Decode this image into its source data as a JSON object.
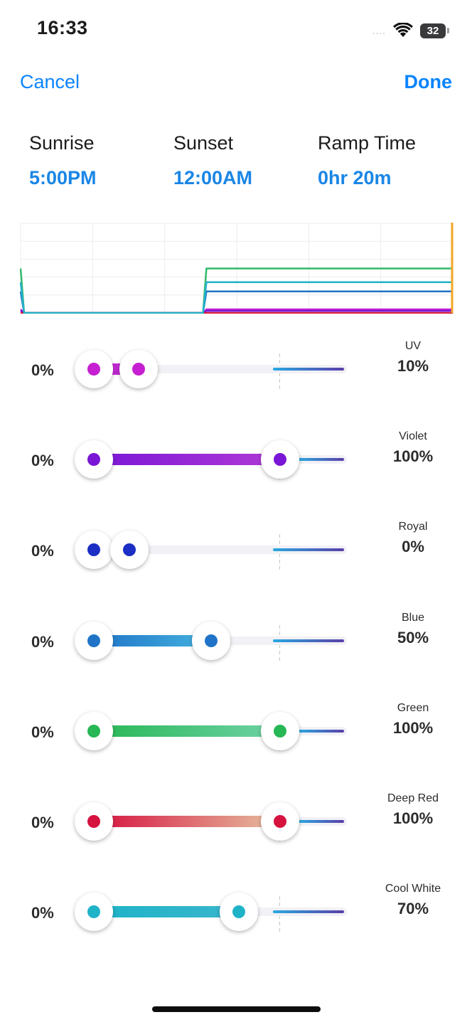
{
  "status": {
    "time": "16:33",
    "battery": "32",
    "signal_dots": "....",
    "wifi_icon": "wifi-icon"
  },
  "nav": {
    "cancel": "Cancel",
    "done": "Done"
  },
  "schedule": {
    "sunrise_label": "Sunrise",
    "sunrise_value": "5:00PM",
    "sunset_label": "Sunset",
    "sunset_value": "12:00AM",
    "ramp_label": "Ramp Time",
    "ramp_value": "0hr 20m"
  },
  "chart_data": {
    "type": "line",
    "title": "",
    "xlabel": "",
    "ylabel": "",
    "grid": true,
    "x": [
      0,
      0.8,
      42.2,
      43,
      100
    ],
    "xlim": [
      0,
      100
    ],
    "ylim": [
      0,
      125
    ],
    "current_time_marker": 100,
    "current_time_marker_color": "#f5a623",
    "series": [
      {
        "color": "#c51fd1",
        "values": [
          5,
          0,
          0,
          5,
          5
        ]
      },
      {
        "color": "#7a16d6",
        "values": [
          3,
          0,
          0,
          3,
          3
        ]
      },
      {
        "color": "#2b3cc8",
        "values": [
          0,
          0,
          0,
          0,
          0
        ]
      },
      {
        "color": "#1f74c8",
        "values": [
          30,
          0,
          0,
          30,
          30
        ]
      },
      {
        "color": "#33b86a",
        "values": [
          62,
          0,
          0,
          62,
          62
        ]
      },
      {
        "color": "#d81b3c",
        "values": [
          0,
          0,
          0,
          0,
          0
        ]
      },
      {
        "color": "#22b2c9",
        "values": [
          43,
          0,
          0,
          43,
          43
        ]
      }
    ]
  },
  "channels": [
    {
      "name": "UV",
      "min": "0%",
      "value": "10%",
      "min_level": 0,
      "max_level": 0.24,
      "color": "#c51fd1",
      "fill": [
        "#d02fd8",
        "#b326cc"
      ],
      "tail_pct": 0.28
    },
    {
      "name": "Violet",
      "min": "0%",
      "value": "100%",
      "min_level": 0,
      "max_level": 1.0,
      "color": "#7a16d6",
      "fill": [
        "#7a16d6",
        "#b13ad6"
      ],
      "tail_pct": 0.18
    },
    {
      "name": "Royal",
      "min": "0%",
      "value": "0%",
      "min_level": 0,
      "max_level": 0.19,
      "color": "#1c2ec4",
      "fill": [
        "#3048c8",
        "#2b3cc8"
      ],
      "tail_pct": 0.28
    },
    {
      "name": "Blue",
      "min": "0%",
      "value": "50%",
      "min_level": 0,
      "max_level": 0.63,
      "color": "#1f74c8",
      "fill": [
        "#1f74c8",
        "#45b2df"
      ],
      "tail_pct": 0.28
    },
    {
      "name": "Green",
      "min": "0%",
      "value": "100%",
      "min_level": 0,
      "max_level": 1.0,
      "color": "#27b755",
      "fill": [
        "#27b755",
        "#6fd2a6"
      ],
      "tail_pct": 0.18
    },
    {
      "name": "Deep Red",
      "min": "0%",
      "value": "100%",
      "min_level": 0,
      "max_level": 1.0,
      "color": "#d6123f",
      "fill": [
        "#d6123f",
        "#e6c0a0"
      ],
      "tail_pct": 0.18
    },
    {
      "name": "Cool White",
      "min": "0%",
      "value": "70%",
      "min_level": 0,
      "max_level": 0.78,
      "color": "#1fb3c8",
      "fill": [
        "#1fb3c8",
        "#38b6cd"
      ],
      "tail_pct": 0.28
    }
  ]
}
